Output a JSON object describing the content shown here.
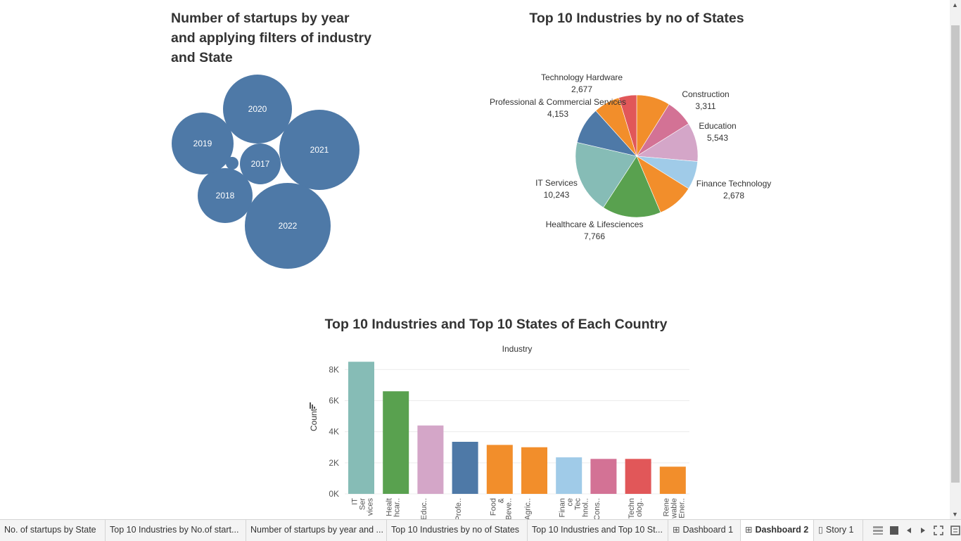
{
  "bubble": {
    "title": "Number of startups by year and applying filters of industry and State",
    "color": "#4e79a7",
    "bubbles": [
      {
        "label": "2017"
      },
      {
        "label": "2018"
      },
      {
        "label": "2019"
      },
      {
        "label": "2020"
      },
      {
        "label": "2021"
      },
      {
        "label": "2022"
      },
      {
        "label": ""
      }
    ]
  },
  "pie": {
    "title": "Top 10 Industries by no of States",
    "slices": [
      {
        "name": "Construction",
        "value": "3,311",
        "color": "#f28e2b"
      },
      {
        "name": "",
        "value": "",
        "color": "#d37295"
      },
      {
        "name": "Education",
        "value": "5,543",
        "color": "#d4a6c8"
      },
      {
        "name": "Finance Technology",
        "value": "2,678",
        "color": "#a0cbe8"
      },
      {
        "name": "",
        "value": "",
        "color": "#f28e2b"
      },
      {
        "name": "Healthcare & Lifesciences",
        "value": "7,766",
        "color": "#59a14f"
      },
      {
        "name": "IT Services",
        "value": "10,243",
        "color": "#86bcb6"
      },
      {
        "name": "Professional & Commercial Services",
        "value": "4,153",
        "color": "#4e79a7"
      },
      {
        "name": "Technology Hardware",
        "value": "2,677",
        "color": "#f28e2b"
      },
      {
        "name": "",
        "value": "",
        "color": "#e15759"
      }
    ]
  },
  "chart_data": {
    "type": "bar",
    "title": "Top 10 Industries and Top 10 States of Each Country",
    "xlabel": "Industry",
    "ylabel": "Count",
    "ylim": [
      0,
      8600
    ],
    "yticks": [
      "0K",
      "2K",
      "4K",
      "6K",
      "8K"
    ],
    "grid": true,
    "categories": [
      "IT Ser vices",
      "Healt hcar..",
      "Educ..",
      "Profe..",
      "Food & Beve..",
      "Agric..",
      "Finan ce Tec hnol..",
      "Cons..",
      "Techn olog..",
      "Rene wable Ener.."
    ],
    "values": [
      8500,
      6600,
      4400,
      3350,
      3150,
      3000,
      2350,
      2250,
      2250,
      1750
    ],
    "colors": [
      "#86bcb6",
      "#59a14f",
      "#d4a6c8",
      "#4e79a7",
      "#f28e2b",
      "#f28e2b",
      "#a0cbe8",
      "#d37295",
      "#e15759",
      "#f28e2b"
    ]
  },
  "tabs": [
    {
      "label": "No. of startups by State",
      "icon": ""
    },
    {
      "label": "Top 10 Industries by No.of start...",
      "icon": ""
    },
    {
      "label": "Number of startups by year and ...",
      "icon": ""
    },
    {
      "label": "Top 10 Industries by no of States",
      "icon": ""
    },
    {
      "label": "Top 10 Industries and Top 10 St...",
      "icon": ""
    },
    {
      "label": "Dashboard 1",
      "icon": "⊞"
    },
    {
      "label": "Dashboard 2",
      "icon": "⊞"
    },
    {
      "label": "Story 1",
      "icon": "▯"
    }
  ],
  "controls": [
    "grid-view-icon",
    "filmstrip-icon",
    "prev-icon",
    "next-icon",
    "fullscreen-icon",
    "menu-icon"
  ]
}
